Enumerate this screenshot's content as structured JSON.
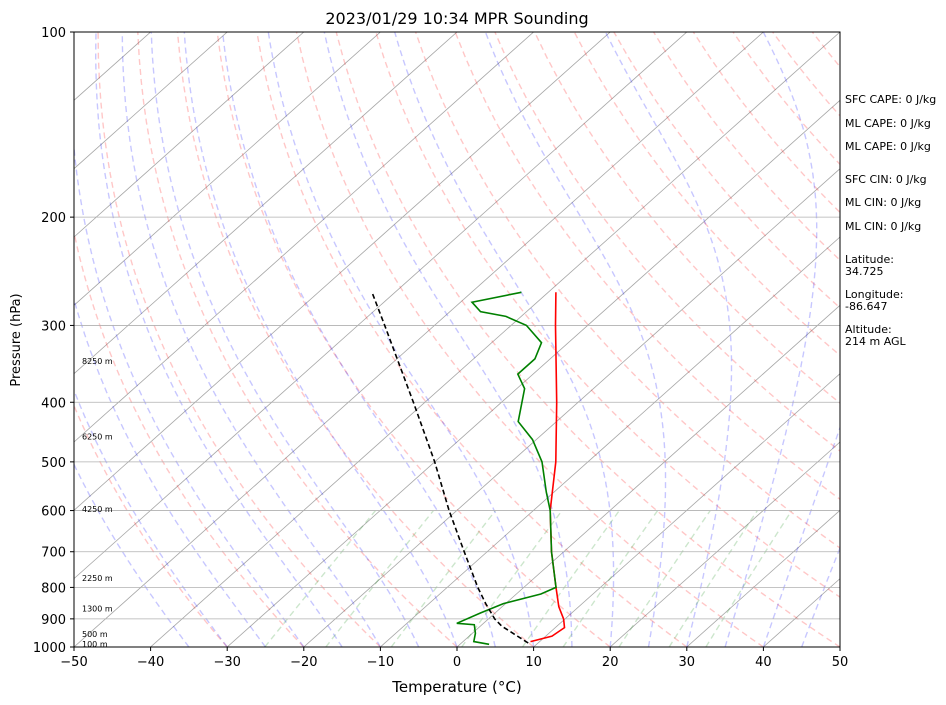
{
  "chart_data": {
    "type": "line",
    "title": "2023/01/29 10:34 MPR Sounding",
    "xlabel": "Temperature (°C)",
    "ylabel": "Pressure (hPa)",
    "xlim": [
      -50,
      50
    ],
    "ylim": [
      1000,
      100
    ],
    "yscale": "log",
    "x_ticks": [
      -50,
      -40,
      -30,
      -20,
      -10,
      0,
      10,
      20,
      30,
      40,
      50
    ],
    "y_ticks": [
      100,
      200,
      300,
      400,
      500,
      600,
      700,
      800,
      900,
      1000
    ],
    "skew": "skew-T log-p",
    "grid": true,
    "colors": {
      "temperature": "#ff0000",
      "dewpoint": "#008000",
      "parcel": "#000000",
      "dry_adiabats": "#ff0000",
      "moist_adiabats": "#0000ff",
      "mixing_ratio": "#008000",
      "isotherms": "#808080"
    },
    "series": [
      {
        "key": "temperature",
        "points": [
          {
            "p": 980,
            "t": 8.8
          },
          {
            "p": 960,
            "t": 10.8
          },
          {
            "p": 930,
            "t": 11.2
          },
          {
            "p": 900,
            "t": 9.8
          },
          {
            "p": 860,
            "t": 7.4
          },
          {
            "p": 800,
            "t": 4.2
          },
          {
            "p": 700,
            "t": -1.6
          },
          {
            "p": 600,
            "t": -7.8
          },
          {
            "p": 500,
            "t": -14.2
          },
          {
            "p": 400,
            "t": -22.8
          },
          {
            "p": 300,
            "t": -34.2
          },
          {
            "p": 265,
            "t": -39.0
          }
        ]
      },
      {
        "key": "dewpoint",
        "points": [
          {
            "p": 990,
            "t": 3.8
          },
          {
            "p": 980,
            "t": 1.4
          },
          {
            "p": 950,
            "t": 0.4
          },
          {
            "p": 920,
            "t": -1.0
          },
          {
            "p": 915,
            "t": -3.5
          },
          {
            "p": 880,
            "t": -1.9
          },
          {
            "p": 850,
            "t": -0.3
          },
          {
            "p": 820,
            "t": 3.2
          },
          {
            "p": 800,
            "t": 4.2
          },
          {
            "p": 700,
            "t": -1.6
          },
          {
            "p": 600,
            "t": -7.8
          },
          {
            "p": 560,
            "t": -11.0
          },
          {
            "p": 500,
            "t": -16.0
          },
          {
            "p": 460,
            "t": -20.5
          },
          {
            "p": 430,
            "t": -25.0
          },
          {
            "p": 380,
            "t": -29.0
          },
          {
            "p": 360,
            "t": -32.0
          },
          {
            "p": 340,
            "t": -32.0
          },
          {
            "p": 320,
            "t": -33.5
          },
          {
            "p": 300,
            "t": -38.0
          },
          {
            "p": 290,
            "t": -42.0
          },
          {
            "p": 285,
            "t": -46.0
          },
          {
            "p": 275,
            "t": -48.5
          },
          {
            "p": 265,
            "t": -43.5
          }
        ]
      },
      {
        "key": "parcel",
        "points": [
          {
            "p": 985,
            "t": 8.7
          },
          {
            "p": 950,
            "t": 5.3
          },
          {
            "p": 925,
            "t": 2.8
          },
          {
            "p": 900,
            "t": 0.8
          },
          {
            "p": 850,
            "t": -2.6
          },
          {
            "p": 800,
            "t": -6.0
          },
          {
            "p": 700,
            "t": -13.0
          },
          {
            "p": 600,
            "t": -21.0
          },
          {
            "p": 500,
            "t": -30.0
          },
          {
            "p": 400,
            "t": -41.5
          },
          {
            "p": 300,
            "t": -56.5
          },
          {
            "p": 265,
            "t": -63.0
          }
        ]
      }
    ],
    "height_labels": [
      "100 m",
      "500 m",
      "1300 m",
      "2250 m",
      "4250 m",
      "6250 m",
      "8250 m"
    ],
    "annotations": {
      "sfc_cape": "SFC CAPE: 0 J/kg",
      "ml_cape_1": "ML CAPE: 0 J/kg",
      "ml_cape_2": "ML CAPE: 0 J/kg",
      "sfc_cin": "SFC CIN: 0 J/kg",
      "ml_cin_1": "ML CIN: 0 J/kg",
      "ml_cin_2": "ML CIN: 0 J/kg",
      "latitude": "Latitude:\n34.725",
      "longitude": "Longitude:\n-86.647",
      "altitude": "Altitude:\n214 m AGL"
    }
  }
}
